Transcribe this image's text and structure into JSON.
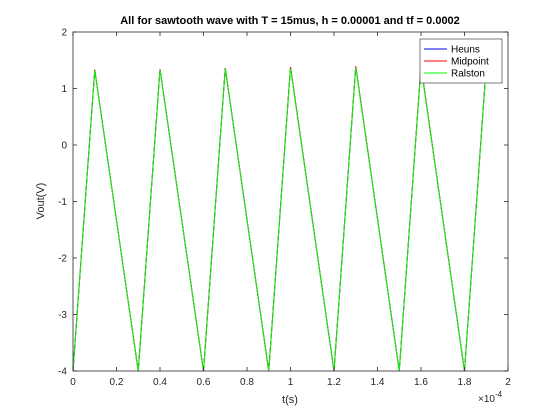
{
  "chart_data": {
    "type": "line",
    "title": "All for sawtooth wave with T = 15mus, h = 0.00001 and tf = 0.0002",
    "xlabel": "t(s)",
    "ylabel": "Vout(V)",
    "x_exponent_label": "×10",
    "x_exponent_power": "-4",
    "xlim": [
      0,
      0.0002
    ],
    "ylim": [
      -4,
      2
    ],
    "xticks": [
      0,
      2e-05,
      4e-05,
      6e-05,
      8e-05,
      0.0001,
      0.00012,
      0.00014,
      0.00016,
      0.00018,
      0.0002
    ],
    "xtick_labels": [
      "0",
      "0.2",
      "0.4",
      "0.6",
      "0.8",
      "1",
      "1.2",
      "1.4",
      "1.6",
      "1.8",
      "2"
    ],
    "yticks": [
      -4,
      -3,
      -2,
      -1,
      0,
      1,
      2
    ],
    "ytick_labels": [
      "-4",
      "-3",
      "-2",
      "-1",
      "0",
      "1",
      "2"
    ],
    "grid": false,
    "legend_position": "top-right",
    "series": [
      {
        "name": "Heuns",
        "color": "#0000ff",
        "x": [
          0,
          1e-05,
          3e-05,
          4e-05,
          6e-05,
          7e-05,
          9e-05,
          0.0001,
          0.00012,
          0.00013,
          0.00015,
          0.00016,
          0.00018,
          0.00019
        ],
        "y": [
          -4,
          1.33,
          -4,
          1.34,
          -4,
          1.36,
          -4,
          1.38,
          -4,
          1.39,
          -4,
          1.4,
          -4,
          1.4
        ]
      },
      {
        "name": "Midpoint",
        "color": "#ff0000",
        "x": [
          0,
          1e-05,
          3e-05,
          4e-05,
          6e-05,
          7e-05,
          9e-05,
          0.0001,
          0.00012,
          0.00013,
          0.00015,
          0.00016,
          0.00018,
          0.00019
        ],
        "y": [
          -4,
          1.33,
          -4,
          1.34,
          -4,
          1.36,
          -4,
          1.38,
          -4,
          1.39,
          -4,
          1.4,
          -4,
          1.4
        ]
      },
      {
        "name": "Ralston",
        "color": "#00ff00",
        "x": [
          0,
          1e-05,
          3e-05,
          4e-05,
          6e-05,
          7e-05,
          9e-05,
          0.0001,
          0.00012,
          0.00013,
          0.00015,
          0.00016,
          0.00018,
          0.00019
        ],
        "y": [
          -4,
          1.32,
          -4,
          1.33,
          -4,
          1.35,
          -4,
          1.36,
          -4,
          1.37,
          -4,
          1.38,
          -4,
          1.38
        ]
      }
    ]
  }
}
